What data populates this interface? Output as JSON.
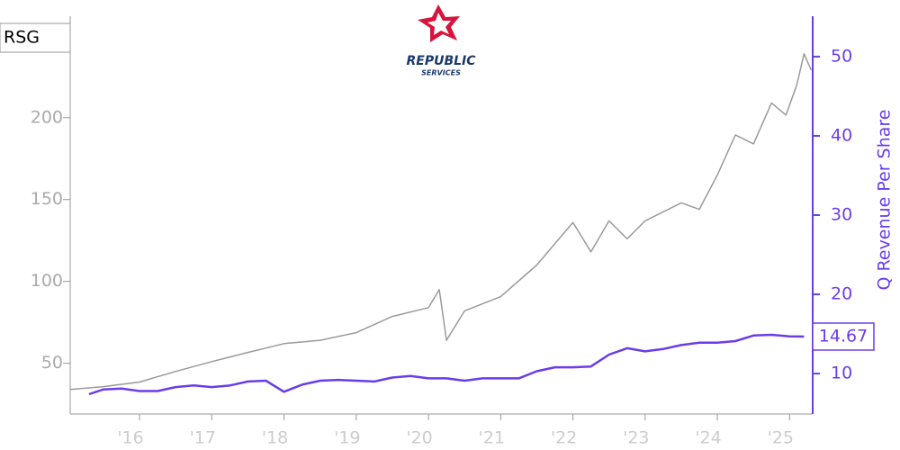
{
  "chart_data": {
    "type": "line",
    "logo": {
      "name": "REPUBLIC",
      "subname": "SERVICES"
    },
    "y2_label": "Q Revenue Per Share",
    "xlim": [
      2015.04,
      2025.32
    ],
    "xticks": [
      {
        "value": 2016,
        "label": "'16"
      },
      {
        "value": 2017,
        "label": "'17"
      },
      {
        "value": 2018,
        "label": "'18"
      },
      {
        "value": 2019,
        "label": "'19"
      },
      {
        "value": 2020,
        "label": "'20"
      },
      {
        "value": 2021,
        "label": "'21"
      },
      {
        "value": 2022,
        "label": "'22"
      },
      {
        "value": 2023,
        "label": "'23"
      },
      {
        "value": 2024,
        "label": "'24"
      },
      {
        "value": 2025,
        "label": "'25"
      }
    ],
    "ylim": [
      19,
      262
    ],
    "yticks": [
      50,
      100,
      150,
      200
    ],
    "y2lim": [
      4.9,
      55.1
    ],
    "y2ticks": [
      10,
      20,
      30,
      40,
      50
    ],
    "series": [
      {
        "name": "RSG",
        "color": "#9a9a9a",
        "axis": "y",
        "x": [
          2015.04,
          2015.5,
          2016.0,
          2016.5,
          2017.0,
          2017.5,
          2018.0,
          2018.5,
          2019.0,
          2019.5,
          2020.0,
          2020.15,
          2020.25,
          2020.5,
          2021.0,
          2021.5,
          2022.0,
          2022.25,
          2022.5,
          2022.75,
          2023.0,
          2023.5,
          2023.75,
          2024.0,
          2024.25,
          2024.5,
          2024.75,
          2024.95,
          2025.1,
          2025.2,
          2025.3
        ],
        "values": [
          34,
          35.7,
          38.5,
          45,
          51,
          56.6,
          62,
          64,
          68.7,
          78.6,
          84,
          95,
          64,
          82,
          90.7,
          110,
          136,
          118,
          137,
          126,
          137,
          148,
          144,
          165,
          189.5,
          184,
          209,
          201.6,
          220,
          239,
          229
        ]
      },
      {
        "color": "#6a3de8",
        "axis": "y2",
        "x": [
          2015.3,
          2015.5,
          2015.75,
          2016.0,
          2016.25,
          2016.5,
          2016.75,
          2017.0,
          2017.25,
          2017.5,
          2017.75,
          2018.0,
          2018.25,
          2018.5,
          2018.75,
          2019.0,
          2019.25,
          2019.5,
          2019.75,
          2020.0,
          2020.25,
          2020.5,
          2020.75,
          2021.0,
          2021.25,
          2021.5,
          2021.75,
          2022.0,
          2022.25,
          2022.5,
          2022.75,
          2023.0,
          2023.25,
          2023.5,
          2023.75,
          2024.0,
          2024.25,
          2024.5,
          2024.75,
          2025.0,
          2025.2
        ],
        "values": [
          7.4,
          8.0,
          8.1,
          7.8,
          7.8,
          8.3,
          8.5,
          8.3,
          8.5,
          9.0,
          9.1,
          7.7,
          8.6,
          9.1,
          9.2,
          9.1,
          9.0,
          9.5,
          9.7,
          9.4,
          9.4,
          9.1,
          9.4,
          9.4,
          9.4,
          10.3,
          10.8,
          10.8,
          10.9,
          12.4,
          13.2,
          12.8,
          13.1,
          13.6,
          13.9,
          13.9,
          14.1,
          14.8,
          14.9,
          14.7,
          14.67
        ]
      }
    ],
    "annotation": {
      "value": 14.67,
      "label": "14.67"
    }
  }
}
